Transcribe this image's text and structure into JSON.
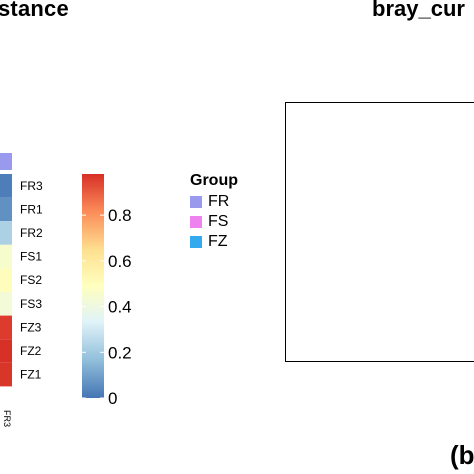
{
  "left_panel": {
    "title": "stance"
  },
  "right_panel": {
    "title": "bray_cur"
  },
  "panel_label": "(b",
  "chart_data": {
    "type": "heatmap",
    "rows": [
      "FR3",
      "FR1",
      "FR2",
      "FS1",
      "FS2",
      "FS3",
      "FZ3",
      "FZ2",
      "FZ1"
    ],
    "values": [
      0.02,
      0.06,
      0.22,
      0.45,
      0.5,
      0.42,
      0.96,
      0.98,
      0.97
    ],
    "annotation_color": "#9999ee",
    "colorbar": {
      "ticks": [
        0,
        0.2,
        0.4,
        0.6,
        0.8
      ],
      "tick_labels": [
        "0",
        "0.2",
        "0.4",
        "0.6",
        "0.8"
      ],
      "range": [
        0,
        0.98
      ],
      "colors": [
        "#4575b4",
        "#91bfdb",
        "#e0f3f8",
        "#ffffbf",
        "#fee090",
        "#fc8d59",
        "#d73027"
      ]
    }
  },
  "legend": {
    "title": "Group",
    "items": [
      {
        "label": "FR",
        "color": "#9999ee"
      },
      {
        "label": "FS",
        "color": "#ee82ee"
      },
      {
        "label": "FZ",
        "color": "#33aaee"
      }
    ]
  }
}
